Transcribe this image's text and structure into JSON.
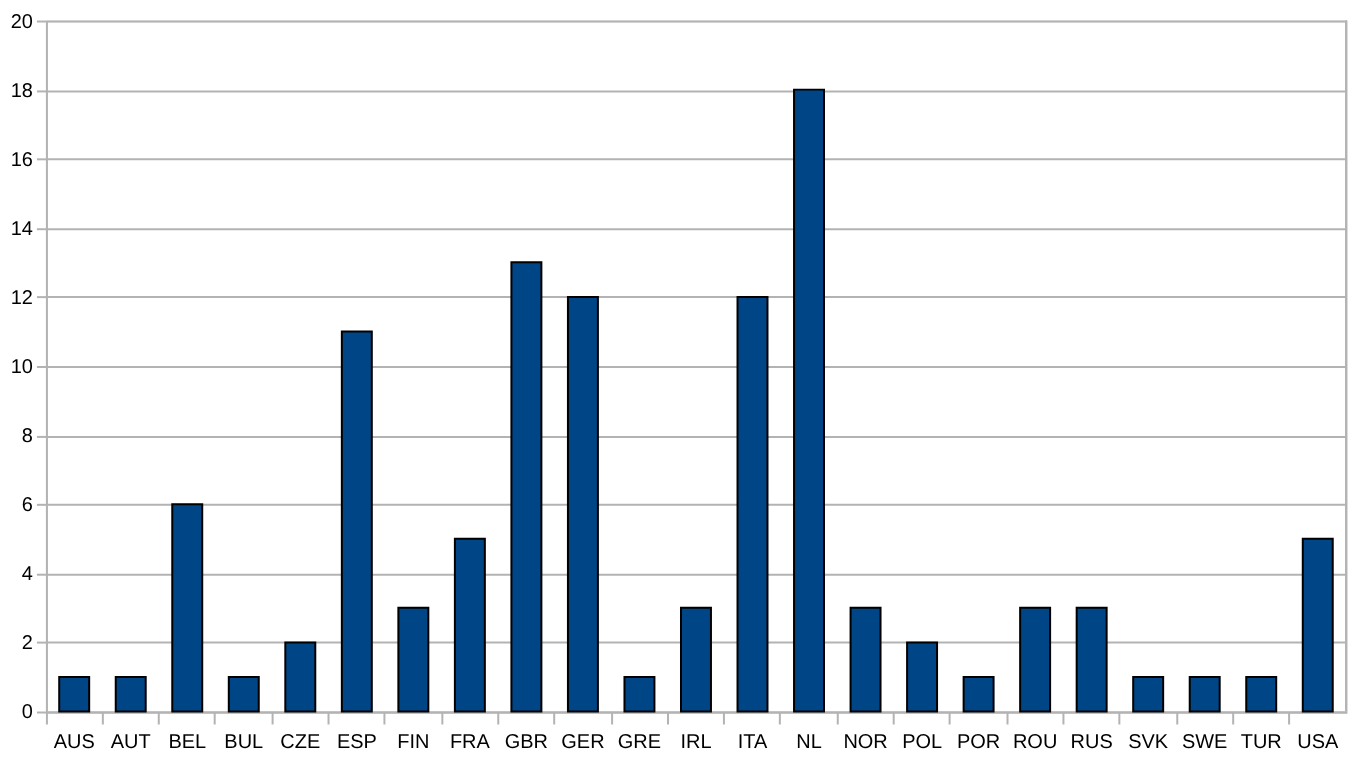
{
  "chart_data": {
    "type": "bar",
    "categories": [
      "AUS",
      "AUT",
      "BEL",
      "BUL",
      "CZE",
      "ESP",
      "FIN",
      "FRA",
      "GBR",
      "GER",
      "GRE",
      "IRL",
      "ITA",
      "NL",
      "NOR",
      "POL",
      "POR",
      "ROU",
      "RUS",
      "SVK",
      "SWE",
      "TUR",
      "USA"
    ],
    "values": [
      1,
      1,
      6,
      1,
      2,
      11,
      3,
      5,
      13,
      12,
      1,
      3,
      12,
      18,
      3,
      2,
      1,
      3,
      3,
      1,
      1,
      1,
      5
    ],
    "color": "#004586",
    "ylim": [
      0,
      20
    ],
    "yticks": [
      0,
      2,
      4,
      6,
      8,
      10,
      12,
      14,
      16,
      18,
      20
    ],
    "grid": "y"
  }
}
